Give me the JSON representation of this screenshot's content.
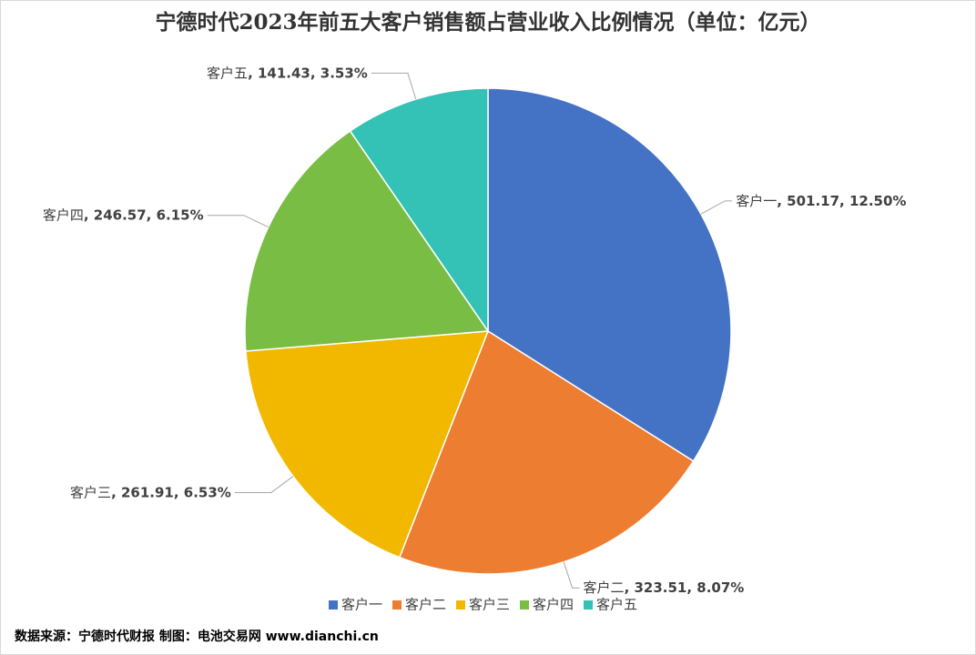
{
  "chart_data": {
    "type": "pie",
    "title": "宁德时代2023年前五大客户销售额占营业收入比例情况（单位：亿元）",
    "categories": [
      "客户一",
      "客户二",
      "客户三",
      "客户四",
      "客户五"
    ],
    "values": [
      501.17,
      323.51,
      261.91,
      246.57,
      141.43
    ],
    "percent_labels": [
      "12.50%",
      "8.07%",
      "6.53%",
      "6.15%",
      "3.53%"
    ],
    "label_separator": ", ",
    "colors": [
      "#4472c4",
      "#ed7d31",
      "#f2b800",
      "#7abd44",
      "#33c2b5"
    ],
    "legend": "bottom",
    "source": "数据来源：宁德时代财报  制图：电池交易网 www.dianchi.cn"
  }
}
